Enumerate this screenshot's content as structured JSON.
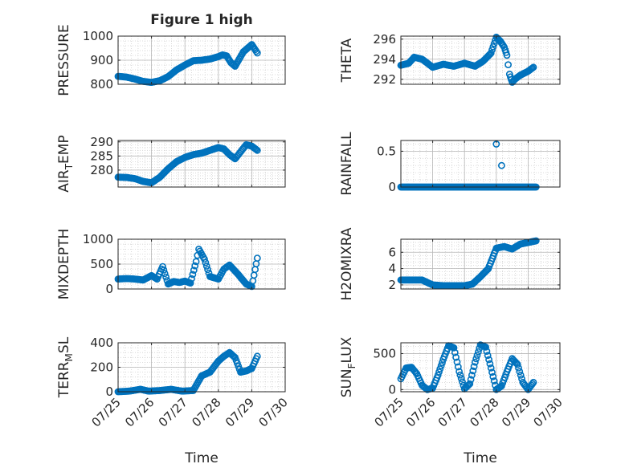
{
  "figure": {
    "title": "Figure 1 high"
  },
  "colors": {
    "marker": "#0072BD",
    "axis": "#262626",
    "grid": "#b8b8b8"
  },
  "chart_data": [
    {
      "id": "pressure",
      "type": "scatter",
      "marker": "circle",
      "ylabel": "PRESSURE",
      "ylabel_sub": null,
      "ylim": [
        800,
        1000
      ],
      "yticks": [
        "800",
        "900",
        "1000"
      ],
      "xlim": [
        "07/25",
        "07/30"
      ],
      "xticks": [
        "07/25",
        "07/26",
        "07/27",
        "07/28",
        "07/29",
        "07/30"
      ],
      "show_xticklabels": false,
      "xlabel": "",
      "grid": true,
      "minor_grid": true,
      "x": [
        "07/25 00:00",
        "07/25 06:00",
        "07/25 12:00",
        "07/25 18:00",
        "07/26 00:00",
        "07/26 06:00",
        "07/26 12:00",
        "07/26 18:00",
        "07/27 00:00",
        "07/27 06:00",
        "07/27 12:00",
        "07/27 18:00",
        "07/28 00:00",
        "07/28 03:00",
        "07/28 06:00",
        "07/28 09:00",
        "07/28 12:00",
        "07/28 18:00",
        "07/29 00:00",
        "07/29 04:00"
      ],
      "y": [
        833,
        830,
        822,
        812,
        808,
        815,
        832,
        860,
        880,
        898,
        900,
        905,
        915,
        922,
        918,
        890,
        875,
        935,
        965,
        930
      ]
    },
    {
      "id": "theta",
      "type": "scatter",
      "marker": "circle",
      "ylabel": "THETA",
      "ylabel_sub": null,
      "ylim": [
        291.5,
        296.3
      ],
      "yticks": [
        "292",
        "294",
        "296"
      ],
      "xlim": [
        "07/25",
        "07/30"
      ],
      "xticks": [
        "07/25",
        "07/26",
        "07/27",
        "07/28",
        "07/29",
        "07/30"
      ],
      "show_xticklabels": false,
      "xlabel": "",
      "grid": true,
      "minor_grid": true,
      "x": [
        "07/25 00:00",
        "07/25 06:00",
        "07/25 10:00",
        "07/25 16:00",
        "07/25 20:00",
        "07/26 00:00",
        "07/26 08:00",
        "07/26 16:00",
        "07/27 00:00",
        "07/27 08:00",
        "07/27 14:00",
        "07/27 20:00",
        "07/28 00:00",
        "07/28 03:00",
        "07/28 06:00",
        "07/28 08:00",
        "07/28 10:00",
        "07/28 12:00",
        "07/28 14:00",
        "07/28 18:00",
        "07/29 00:00",
        "07/29 04:00"
      ],
      "y": [
        293.4,
        293.6,
        294.2,
        294.0,
        293.6,
        293.2,
        293.5,
        293.3,
        293.6,
        293.3,
        293.8,
        294.6,
        296.2,
        295.8,
        295.2,
        294.4,
        292.5,
        291.7,
        292.0,
        292.4,
        292.8,
        293.2
      ]
    },
    {
      "id": "air_temp",
      "type": "scatter",
      "marker": "circle",
      "ylabel": "AIR",
      "ylabel_sub": "T",
      "ylabel_suffix": "EMP",
      "ylim": [
        274,
        290.5
      ],
      "yticks": [
        "280",
        "285",
        "290"
      ],
      "xlim": [
        "07/25",
        "07/30"
      ],
      "xticks": [
        "07/25",
        "07/26",
        "07/27",
        "07/28",
        "07/29",
        "07/30"
      ],
      "show_xticklabels": false,
      "xlabel": "",
      "grid": true,
      "minor_grid": true,
      "x": [
        "07/25 00:00",
        "07/25 06:00",
        "07/25 12:00",
        "07/25 18:00",
        "07/26 00:00",
        "07/26 06:00",
        "07/26 12:00",
        "07/26 18:00",
        "07/27 00:00",
        "07/27 06:00",
        "07/27 12:00",
        "07/27 18:00",
        "07/28 00:00",
        "07/28 04:00",
        "07/28 08:00",
        "07/28 12:00",
        "07/28 16:00",
        "07/28 20:00",
        "07/29 00:00",
        "07/29 04:00"
      ],
      "y": [
        277.5,
        277.4,
        277.0,
        276.0,
        275.5,
        277.5,
        280.5,
        283.0,
        284.5,
        285.5,
        286.0,
        287.0,
        288.0,
        287.5,
        285.5,
        284.0,
        286.5,
        289.0,
        288.5,
        287.0
      ]
    },
    {
      "id": "rainfall",
      "type": "scatter",
      "marker": "circle",
      "ylabel": "RAINFALL",
      "ylabel_sub": null,
      "ylim": [
        0,
        0.65
      ],
      "yticks": [
        "0",
        "0.5"
      ],
      "xlim": [
        "07/25",
        "07/30"
      ],
      "xticks": [
        "07/25",
        "07/26",
        "07/27",
        "07/28",
        "07/29",
        "07/30"
      ],
      "show_xticklabels": false,
      "xlabel": "",
      "grid": true,
      "minor_grid": true,
      "x_range": [
        "07/25 00:00",
        "07/29 06:00"
      ],
      "baseline_value": 0,
      "spikes": [
        {
          "x": "07/28 00:00",
          "y": 0.6
        },
        {
          "x": "07/28 04:00",
          "y": 0.3
        }
      ]
    },
    {
      "id": "mixdepth",
      "type": "scatter",
      "marker": "circle",
      "ylabel": "MIXDEPTH",
      "ylabel_sub": null,
      "ylim": [
        0,
        1000
      ],
      "yticks": [
        "0",
        "500",
        "1000"
      ],
      "xlim": [
        "07/25",
        "07/30"
      ],
      "xticks": [
        "07/25",
        "07/26",
        "07/27",
        "07/28",
        "07/29",
        "07/30"
      ],
      "show_xticklabels": false,
      "xlabel": "",
      "grid": true,
      "minor_grid": true,
      "x": [
        "07/25 00:00",
        "07/25 06:00",
        "07/25 12:00",
        "07/25 18:00",
        "07/26 00:00",
        "07/26 04:00",
        "07/26 08:00",
        "07/26 12:00",
        "07/26 16:00",
        "07/26 20:00",
        "07/27 00:00",
        "07/27 04:00",
        "07/27 08:00",
        "07/27 10:00",
        "07/27 14:00",
        "07/27 18:00",
        "07/28 00:00",
        "07/28 04:00",
        "07/28 08:00",
        "07/28 14:00",
        "07/28 20:00",
        "07/29 00:00",
        "07/29 04:00"
      ],
      "y": [
        200,
        210,
        200,
        180,
        270,
        200,
        450,
        100,
        150,
        130,
        160,
        120,
        550,
        800,
        600,
        250,
        200,
        400,
        480,
        300,
        100,
        50,
        620
      ]
    },
    {
      "id": "h2omixra",
      "type": "scatter",
      "marker": "circle",
      "ylabel": "H2OMIXRA",
      "ylabel_sub": null,
      "ylim": [
        1.5,
        7.6
      ],
      "yticks": [
        "2",
        "4",
        "6"
      ],
      "xlim": [
        "07/25",
        "07/30"
      ],
      "xticks": [
        "07/25",
        "07/26",
        "07/27",
        "07/28",
        "07/29",
        "07/30"
      ],
      "show_xticklabels": false,
      "xlabel": "",
      "grid": true,
      "minor_grid": true,
      "x": [
        "07/25 00:00",
        "07/25 08:00",
        "07/25 16:00",
        "07/26 00:00",
        "07/26 08:00",
        "07/26 16:00",
        "07/27 00:00",
        "07/27 06:00",
        "07/27 12:00",
        "07/27 18:00",
        "07/28 00:00",
        "07/28 06:00",
        "07/28 12:00",
        "07/28 18:00",
        "07/29 00:00",
        "07/29 06:00"
      ],
      "y": [
        2.6,
        2.6,
        2.6,
        2.0,
        1.9,
        1.9,
        1.9,
        2.1,
        3.0,
        4.0,
        6.5,
        6.7,
        6.4,
        7.0,
        7.2,
        7.4
      ]
    },
    {
      "id": "terr_msl",
      "type": "scatter",
      "marker": "circle",
      "ylabel": "TERR",
      "ylabel_sub": "M",
      "ylabel_suffix": "SL",
      "ylim": [
        0,
        400
      ],
      "yticks": [
        "0",
        "200",
        "400"
      ],
      "xlim": [
        "07/25",
        "07/30"
      ],
      "xticks": [
        "07/25",
        "07/26",
        "07/27",
        "07/28",
        "07/29",
        "07/30"
      ],
      "show_xticklabels": true,
      "xlabel": "Time",
      "grid": true,
      "minor_grid": true,
      "x": [
        "07/25 00:00",
        "07/25 08:00",
        "07/25 16:00",
        "07/25 22:00",
        "07/26 06:00",
        "07/26 14:00",
        "07/26 22:00",
        "07/27 06:00",
        "07/27 12:00",
        "07/27 18:00",
        "07/28 00:00",
        "07/28 04:00",
        "07/28 08:00",
        "07/28 12:00",
        "07/28 16:00",
        "07/28 20:00",
        "07/29 00:00",
        "07/29 04:00"
      ],
      "y": [
        0,
        5,
        20,
        5,
        10,
        20,
        5,
        10,
        130,
        160,
        250,
        290,
        320,
        280,
        160,
        170,
        190,
        290
      ]
    },
    {
      "id": "sun_flux",
      "type": "scatter",
      "marker": "circle",
      "ylabel": "SUN",
      "ylabel_sub": "F",
      "ylabel_suffix": "LUX",
      "ylim": [
        -30,
        650
      ],
      "yticks": [
        "0",
        "500"
      ],
      "xlim": [
        "07/25",
        "07/30"
      ],
      "xticks": [
        "07/25",
        "07/26",
        "07/27",
        "07/28",
        "07/29",
        "07/30"
      ],
      "show_xticklabels": true,
      "xlabel": "Time",
      "grid": true,
      "minor_grid": true,
      "x": [
        "07/25 00:00",
        "07/25 04:00",
        "07/25 08:00",
        "07/25 12:00",
        "07/25 16:00",
        "07/25 20:00",
        "07/26 00:00",
        "07/26 04:00",
        "07/26 08:00",
        "07/26 12:00",
        "07/26 16:00",
        "07/26 20:00",
        "07/27 00:00",
        "07/27 04:00",
        "07/27 08:00",
        "07/27 12:00",
        "07/27 16:00",
        "07/27 20:00",
        "07/28 00:00",
        "07/28 04:00",
        "07/28 08:00",
        "07/28 12:00",
        "07/28 16:00",
        "07/28 20:00",
        "07/29 00:00",
        "07/29 04:00"
      ],
      "y": [
        150,
        300,
        310,
        220,
        60,
        0,
        20,
        200,
        420,
        610,
        580,
        250,
        10,
        80,
        380,
        620,
        590,
        300,
        0,
        50,
        250,
        430,
        350,
        100,
        0,
        100
      ]
    }
  ]
}
